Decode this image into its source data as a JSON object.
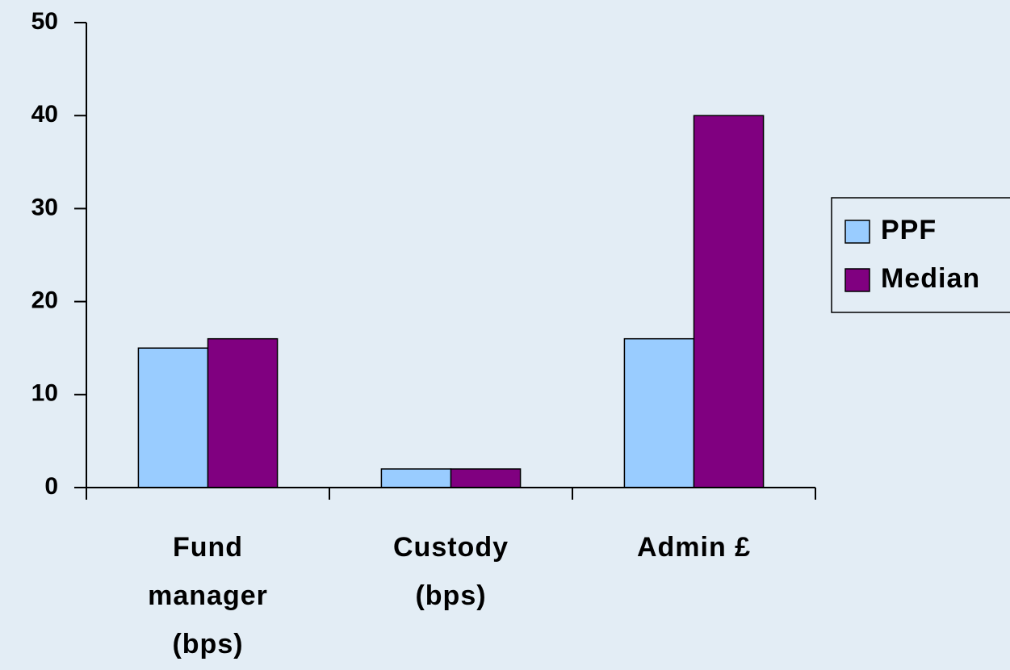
{
  "chart_data": {
    "type": "bar",
    "categories": [
      "Fund manager (bps)",
      "Custody (bps)",
      "Admin £"
    ],
    "series": [
      {
        "name": "PPF",
        "color": "#99ccff",
        "values": [
          15,
          2,
          16
        ]
      },
      {
        "name": "Median",
        "color": "#800080",
        "values": [
          16,
          2,
          40
        ]
      }
    ],
    "ylim": [
      0,
      50
    ],
    "yticks": [
      0,
      10,
      20,
      30,
      40,
      50
    ],
    "grid": false,
    "legend": "right"
  }
}
